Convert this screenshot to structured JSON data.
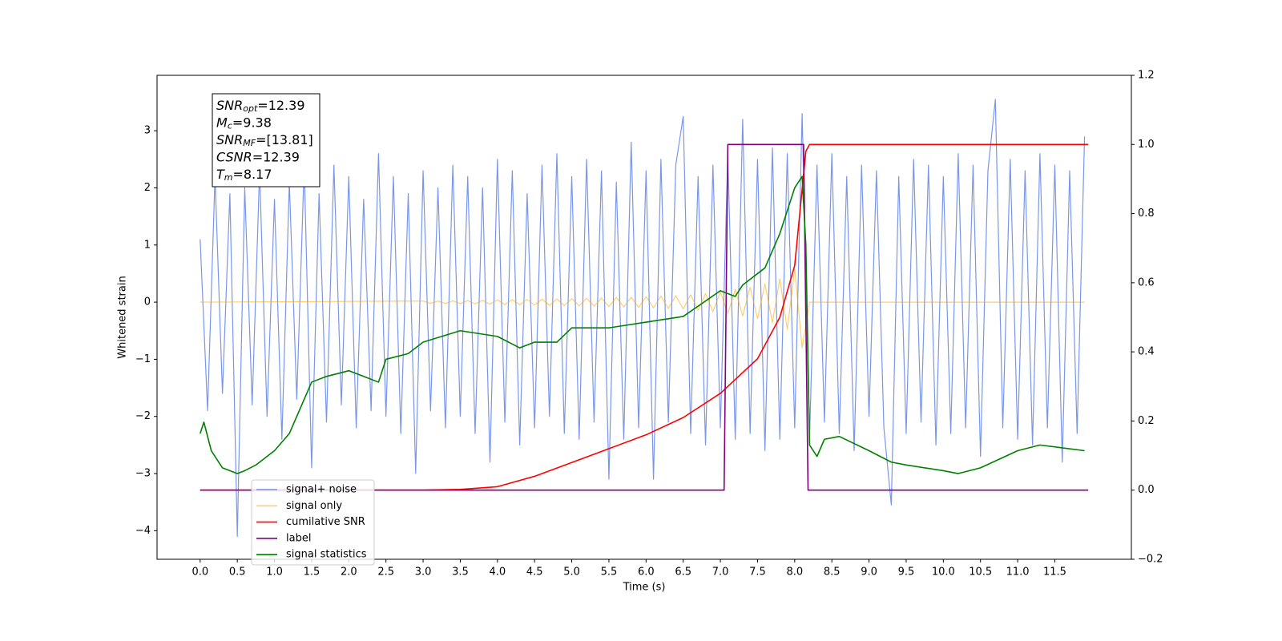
{
  "chart_data": {
    "type": "line",
    "xlabel": "Time (s)",
    "ylabel": "Whitened strain",
    "xlim": [
      -0.58,
      12.53
    ],
    "xticks": [
      {
        "value": 0,
        "label": "0.0"
      },
      0.5,
      {
        "value": 1,
        "label": "1.0"
      },
      1.5,
      {
        "value": 2,
        "label": "2.0"
      },
      2.5,
      {
        "value": 3,
        "label": "3.0"
      },
      3.5,
      {
        "value": 4,
        "label": "4.0"
      },
      4.5,
      {
        "value": 5,
        "label": "5.0"
      },
      5.5,
      {
        "value": 6,
        "label": "6.0"
      },
      6.5,
      {
        "value": 7,
        "label": "7.0"
      },
      7.5,
      {
        "value": 8,
        "label": "8.0"
      },
      8.5,
      {
        "value": 9,
        "label": "9.0"
      },
      9.5,
      {
        "value": 10,
        "label": "10.0"
      },
      10.5,
      {
        "value": 11,
        "label": "11.0"
      },
      11.5
    ],
    "ylim": [
      -4.5,
      3.97
    ],
    "yticks": [
      {
        "value": -4,
        "label": "−4"
      },
      {
        "value": -3,
        "label": "−3"
      },
      {
        "value": -2,
        "label": "−2"
      },
      {
        "value": -1,
        "label": "−1"
      },
      0,
      1,
      2,
      3
    ],
    "y2lim": [
      -0.2,
      1.2
    ],
    "y2ticks": [
      {
        "value": -0.2,
        "label": "−0.2"
      },
      {
        "value": 0,
        "label": "0.0"
      },
      0.2,
      0.4,
      0.6,
      0.8,
      {
        "value": 1,
        "label": "1.0"
      },
      1.2
    ],
    "legend": "lower left",
    "annotation": [
      {
        "base": "SNR",
        "sub": "opt",
        "rest": "=12.39"
      },
      {
        "base": "M",
        "sub": "c",
        "rest": "=9.38"
      },
      {
        "base": "SNR",
        "sub": "MF",
        "rest": "=[13.81]"
      },
      {
        "base": "CSNR",
        "rest": "=12.39"
      },
      {
        "base": "T",
        "sub": "m",
        "rest": "=8.17"
      }
    ],
    "series": [
      {
        "name": "signal+ noise",
        "color": "#4169e1",
        "opacity": 0.7,
        "x": [
          0,
          0.1,
          0.2,
          0.3,
          0.4,
          0.5,
          0.6,
          0.7,
          0.8,
          0.9,
          1,
          1.1,
          1.2,
          1.3,
          1.4,
          1.5,
          1.6,
          1.7,
          1.8,
          1.9,
          2,
          2.1,
          2.2,
          2.3,
          2.4,
          2.5,
          2.6,
          2.7,
          2.8,
          2.9,
          3,
          3.1,
          3.2,
          3.3,
          3.4,
          3.5,
          3.6,
          3.7,
          3.8,
          3.9,
          4,
          4.1,
          4.2,
          4.3,
          4.4,
          4.5,
          4.6,
          4.7,
          4.8,
          4.9,
          5,
          5.1,
          5.2,
          5.3,
          5.4,
          5.5,
          5.6,
          5.7,
          5.8,
          5.9,
          6,
          6.1,
          6.2,
          6.3,
          6.4,
          6.5,
          6.6,
          6.7,
          6.8,
          6.9,
          7,
          7.1,
          7.2,
          7.3,
          7.4,
          7.5,
          7.6,
          7.7,
          7.8,
          7.9,
          8,
          8.1,
          8.2,
          8.3,
          8.4,
          8.5,
          8.6,
          8.7,
          8.8,
          8.9,
          9,
          9.1,
          9.2,
          9.3,
          9.4,
          9.5,
          9.6,
          9.7,
          9.8,
          9.9,
          10,
          10.1,
          10.2,
          10.3,
          10.4,
          10.5,
          10.6,
          10.7,
          10.8,
          10.9,
          11,
          11.1,
          11.2,
          11.3,
          11.4,
          11.5,
          11.6,
          11.7,
          11.8,
          11.9
        ],
        "values": [
          1.1,
          -1.9,
          2.2,
          -1.6,
          1.9,
          -4.1,
          2.0,
          -1.8,
          2.3,
          -2.0,
          1.8,
          -2.4,
          2.1,
          -1.7,
          2.4,
          -2.9,
          1.9,
          -2.1,
          2.4,
          -1.8,
          2.2,
          -2.2,
          1.8,
          -1.9,
          2.6,
          -2.0,
          2.2,
          -2.3,
          1.9,
          -3.0,
          2.3,
          -1.9,
          2.0,
          -2.2,
          2.4,
          -2.0,
          2.2,
          -2.3,
          2.0,
          -2.8,
          2.5,
          -2.1,
          2.3,
          -2.5,
          1.9,
          -2.2,
          2.4,
          -2.0,
          2.6,
          -2.3,
          2.2,
          -2.4,
          2.5,
          -2.1,
          2.3,
          -3.1,
          2.1,
          -2.4,
          2.8,
          -2.2,
          2.3,
          -3.1,
          2.5,
          -2.1,
          2.4,
          3.25,
          -2.3,
          2.2,
          -2.5,
          2.4,
          -2.2,
          2.6,
          -2.4,
          3.2,
          -2.3,
          2.5,
          -2.6,
          2.7,
          -2.4,
          2.6,
          -2.2,
          3.3,
          -2.4,
          2.4,
          -2.1,
          2.6,
          -2.3,
          2.2,
          -2.6,
          2.4,
          -2.0,
          2.3,
          -2.2,
          -3.55,
          2.2,
          -2.3,
          2.5,
          -2.1,
          2.4,
          -2.5,
          2.2,
          -2.3,
          2.6,
          -2.2,
          2.4,
          -2.7,
          2.3,
          3.55,
          -2.2,
          2.5,
          -2.4,
          2.3,
          -2.5,
          2.6,
          -2.2,
          2.4,
          -2.8,
          2.3,
          -2.3,
          2.9
        ]
      },
      {
        "name": "signal only",
        "color": "#ffa500",
        "opacity": 0.55,
        "x": [
          0,
          3,
          3.1,
          3.2,
          3.3,
          3.4,
          3.5,
          3.6,
          3.7,
          3.8,
          3.9,
          4,
          4.1,
          4.2,
          4.3,
          4.4,
          4.5,
          4.6,
          4.7,
          4.8,
          4.9,
          5,
          5.1,
          5.2,
          5.3,
          5.4,
          5.5,
          5.6,
          5.7,
          5.8,
          5.9,
          6,
          6.1,
          6.2,
          6.3,
          6.4,
          6.5,
          6.6,
          6.7,
          6.8,
          6.9,
          7,
          7.1,
          7.2,
          7.3,
          7.4,
          7.5,
          7.6,
          7.7,
          7.8,
          7.9,
          8,
          8.1,
          8.2,
          11.9
        ],
        "values": [
          0,
          0.02,
          -0.02,
          0.02,
          -0.022,
          0.024,
          -0.025,
          0.027,
          -0.03,
          0.032,
          -0.035,
          0.04,
          -0.042,
          0.044,
          -0.046,
          0.048,
          -0.05,
          0.052,
          -0.055,
          0.057,
          -0.06,
          0.062,
          -0.065,
          0.068,
          -0.07,
          0.073,
          -0.076,
          0.08,
          -0.083,
          0.087,
          -0.09,
          0.095,
          -0.1,
          0.105,
          -0.11,
          0.115,
          -0.12,
          0.13,
          -0.14,
          0.15,
          -0.165,
          0.18,
          -0.2,
          0.22,
          -0.24,
          0.26,
          -0.29,
          0.32,
          -0.36,
          0.41,
          -0.48,
          0.58,
          -0.8,
          0,
          0
        ]
      },
      {
        "name": "cumilative SNR",
        "color": "#ff0000",
        "axis": "y2",
        "x": [
          0,
          3,
          3.5,
          4,
          4.5,
          5,
          5.5,
          6,
          6.5,
          7,
          7.5,
          7.8,
          8,
          8.1,
          8.15,
          8.2,
          11.95
        ],
        "values": [
          0,
          0,
          0.002,
          0.01,
          0.04,
          0.08,
          0.12,
          0.16,
          0.21,
          0.28,
          0.38,
          0.5,
          0.65,
          0.87,
          0.98,
          1,
          1
        ]
      },
      {
        "name": "label",
        "color": "#800080",
        "axis": "y2",
        "x": [
          0,
          7.05,
          7.1,
          8.12,
          8.18,
          11.95
        ],
        "values": [
          0,
          0,
          1,
          1,
          0,
          0
        ]
      },
      {
        "name": "signal statistics",
        "color": "#008000",
        "x": [
          0,
          0.05,
          0.15,
          0.3,
          0.5,
          0.6,
          0.75,
          1,
          1.2,
          1.5,
          1.7,
          2,
          2.2,
          2.4,
          2.5,
          2.8,
          3,
          3.5,
          4,
          4.3,
          4.5,
          4.8,
          5,
          5.5,
          6,
          6.5,
          7,
          7.2,
          7.3,
          7.6,
          7.8,
          8,
          8.1,
          8.15,
          8.2,
          8.3,
          8.4,
          8.6,
          9,
          9.3,
          9.5,
          10,
          10.2,
          10.5,
          11,
          11.3,
          11.6,
          11.9
        ],
        "values": [
          -2.3,
          -2.1,
          -2.6,
          -2.9,
          -3.0,
          -2.95,
          -2.85,
          -2.6,
          -2.3,
          -1.4,
          -1.3,
          -1.2,
          -1.3,
          -1.4,
          -1.0,
          -0.9,
          -0.7,
          -0.5,
          -0.6,
          -0.8,
          -0.7,
          -0.7,
          -0.45,
          -0.45,
          -0.35,
          -0.25,
          0.2,
          0.1,
          0.3,
          0.6,
          1.2,
          2.0,
          2.2,
          1.0,
          -2.5,
          -2.7,
          -2.4,
          -2.35,
          -2.6,
          -2.8,
          -2.85,
          -2.95,
          -3.0,
          -2.9,
          -2.6,
          -2.5,
          -2.55,
          -2.6
        ]
      }
    ]
  }
}
